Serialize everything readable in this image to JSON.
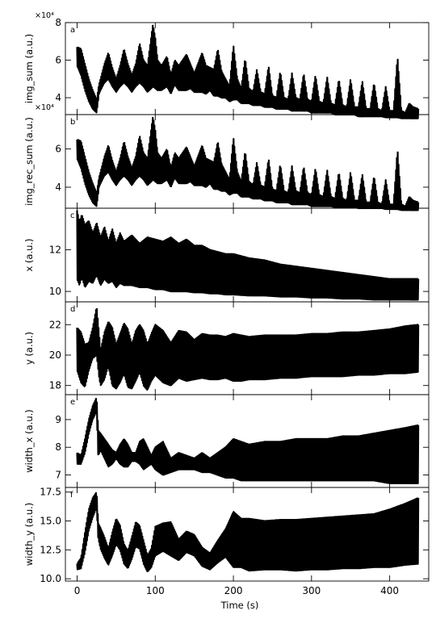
{
  "figure": {
    "xlabel": "Time (s)",
    "x_ticks": [
      "0",
      "100",
      "200",
      "300",
      "400"
    ]
  },
  "chart_data": [
    {
      "type": "line",
      "panel": "a",
      "ylabel": "img_sum (a.u.)",
      "y_offset_text": "×10⁴",
      "xlim": [
        -15,
        450
      ],
      "ylim": [
        31000,
        80000
      ],
      "y_ticks": [
        40000,
        60000,
        80000
      ],
      "y_tick_labels": [
        "4",
        "6",
        "8"
      ],
      "env": {
        "t": [
          0,
          5,
          10,
          15,
          20,
          25,
          28,
          30,
          35,
          40,
          45,
          50,
          55,
          60,
          65,
          70,
          75,
          80,
          85,
          90,
          95,
          97,
          100,
          103,
          108,
          115,
          120,
          125,
          130,
          140,
          145,
          150,
          160,
          165,
          170,
          175,
          180,
          185,
          190,
          195,
          200,
          205,
          210,
          215,
          220,
          225,
          230,
          235,
          240,
          245,
          250,
          255,
          260,
          265,
          270,
          275,
          280,
          285,
          290,
          295,
          300,
          305,
          310,
          315,
          320,
          325,
          330,
          335,
          340,
          345,
          350,
          355,
          360,
          365,
          370,
          375,
          380,
          385,
          390,
          395,
          400,
          405,
          410,
          415,
          420,
          425,
          430,
          437
        ],
        "upper": [
          67000,
          66000,
          58000,
          50000,
          44000,
          39000,
          47000,
          50000,
          58000,
          64000,
          56000,
          50000,
          57000,
          66000,
          58000,
          52000,
          58000,
          69000,
          60000,
          57000,
          73000,
          79000,
          72000,
          60000,
          57000,
          62000,
          52000,
          60000,
          57000,
          63000,
          58000,
          53000,
          64000,
          57000,
          56000,
          55000,
          66000,
          54000,
          50000,
          46000,
          68000,
          50000,
          45000,
          61000,
          45000,
          43000,
          55000,
          43000,
          42000,
          57000,
          41000,
          40000,
          54000,
          40000,
          39000,
          53000,
          40000,
          39000,
          53000,
          39000,
          38000,
          52000,
          38000,
          37000,
          51000,
          37000,
          36000,
          50000,
          36000,
          35000,
          50000,
          35000,
          35000,
          49000,
          34000,
          34000,
          48000,
          34000,
          33000,
          46000,
          33000,
          33000,
          62000,
          33000,
          32000,
          37000,
          35000,
          34000
        ],
        "lower": [
          57000,
          52000,
          44000,
          38000,
          34000,
          32000,
          42000,
          44000,
          48000,
          50000,
          46000,
          43000,
          46000,
          48000,
          46000,
          43000,
          46000,
          48000,
          46000,
          43000,
          45000,
          46000,
          45000,
          44000,
          44000,
          46000,
          42000,
          47000,
          44000,
          44000,
          45000,
          43000,
          43000,
          42000,
          44000,
          41000,
          41000,
          40000,
          40000,
          38000,
          39000,
          39000,
          37000,
          37000,
          37000,
          36000,
          36000,
          36000,
          35000,
          35000,
          35000,
          34000,
          34000,
          34000,
          34000,
          33000,
          33000,
          33000,
          33000,
          33000,
          32000,
          32000,
          32000,
          32000,
          32000,
          32000,
          31000,
          31000,
          31000,
          31000,
          31000,
          31000,
          30000,
          30000,
          30000,
          30000,
          30000,
          30000,
          30000,
          29500,
          29500,
          29500,
          29500,
          29000,
          29000,
          29000,
          29000,
          29000
        ]
      }
    },
    {
      "type": "line",
      "panel": "b",
      "ylabel": "img_rec_sum (a.u.)",
      "y_offset_text": "×10⁴",
      "xlim": [
        -15,
        450
      ],
      "ylim": [
        29000,
        78000
      ],
      "y_ticks": [
        40000,
        60000
      ],
      "y_tick_labels": [
        "4",
        "6"
      ],
      "env": {
        "t": [
          0,
          5,
          10,
          15,
          20,
          25,
          28,
          30,
          35,
          40,
          45,
          50,
          55,
          60,
          65,
          70,
          75,
          80,
          85,
          90,
          95,
          97,
          100,
          103,
          108,
          115,
          120,
          125,
          130,
          140,
          145,
          150,
          160,
          165,
          170,
          175,
          180,
          185,
          190,
          195,
          200,
          205,
          210,
          215,
          220,
          225,
          230,
          235,
          240,
          245,
          250,
          255,
          260,
          265,
          270,
          275,
          280,
          285,
          290,
          295,
          300,
          305,
          310,
          315,
          320,
          325,
          330,
          335,
          340,
          345,
          350,
          355,
          360,
          365,
          370,
          375,
          380,
          385,
          390,
          395,
          400,
          405,
          410,
          415,
          420,
          425,
          430,
          437
        ],
        "upper": [
          65000,
          64000,
          56000,
          48000,
          42000,
          37000,
          45000,
          48000,
          56000,
          62000,
          54000,
          48000,
          55000,
          64000,
          56000,
          50000,
          56000,
          67000,
          58000,
          55000,
          71000,
          77000,
          70000,
          58000,
          55000,
          60000,
          50000,
          58000,
          55000,
          61000,
          56000,
          51000,
          62000,
          55000,
          54000,
          53000,
          64000,
          52000,
          48000,
          44000,
          66000,
          48000,
          43000,
          59000,
          43000,
          41000,
          53000,
          41000,
          40000,
          55000,
          39000,
          38000,
          52000,
          38000,
          37000,
          51000,
          38000,
          37000,
          51000,
          37000,
          36000,
          50000,
          36000,
          35000,
          49000,
          35000,
          34000,
          48000,
          34000,
          33000,
          48000,
          33000,
          33000,
          47000,
          32000,
          32000,
          46000,
          32000,
          31000,
          44000,
          31000,
          31000,
          60000,
          31000,
          30000,
          35000,
          33000,
          32000
        ],
        "lower": [
          55000,
          50000,
          42000,
          36000,
          32000,
          30000,
          40000,
          42000,
          46000,
          48000,
          44000,
          41000,
          44000,
          46000,
          44000,
          41000,
          44000,
          46000,
          44000,
          41000,
          43000,
          44000,
          43000,
          42000,
          42000,
          44000,
          40000,
          45000,
          42000,
          42000,
          43000,
          41000,
          41000,
          40000,
          42000,
          39000,
          39000,
          38000,
          38000,
          36000,
          37000,
          37000,
          35000,
          35000,
          35000,
          34000,
          34000,
          34000,
          33000,
          33000,
          33000,
          32000,
          32000,
          32000,
          32000,
          31000,
          31000,
          31000,
          31000,
          31000,
          30000,
          30000,
          30000,
          30000,
          30000,
          30000,
          29500,
          29500,
          29500,
          29500,
          29500,
          29500,
          29000,
          29000,
          29000,
          29000,
          29000,
          29000,
          29000,
          28500,
          28500,
          28500,
          28500,
          28000,
          28000,
          28000,
          28000,
          28000
        ]
      }
    },
    {
      "type": "line",
      "panel": "c",
      "ylabel": "x (a.u.)",
      "xlim": [
        -15,
        450
      ],
      "ylim": [
        9.5,
        14.0
      ],
      "y_ticks": [
        10,
        12
      ],
      "y_tick_labels": [
        "10",
        "12"
      ],
      "env": {
        "t": [
          0,
          3,
          6,
          10,
          15,
          20,
          25,
          30,
          35,
          40,
          45,
          50,
          55,
          60,
          70,
          80,
          90,
          100,
          110,
          120,
          130,
          140,
          150,
          160,
          170,
          180,
          190,
          200,
          220,
          240,
          260,
          280,
          300,
          320,
          340,
          360,
          380,
          400,
          420,
          437
        ],
        "upper": [
          13.9,
          13.3,
          13.7,
          13.2,
          13.4,
          12.8,
          13.3,
          12.6,
          13.1,
          12.4,
          13.0,
          12.3,
          12.8,
          12.4,
          12.7,
          12.3,
          12.6,
          12.5,
          12.4,
          12.6,
          12.3,
          12.5,
          12.2,
          12.2,
          12.0,
          11.9,
          11.8,
          11.8,
          11.6,
          11.5,
          11.3,
          11.2,
          11.1,
          11.0,
          10.9,
          10.8,
          10.7,
          10.6,
          10.6,
          10.6
        ],
        "lower": [
          10.6,
          10.3,
          10.7,
          10.2,
          10.5,
          10.4,
          10.8,
          10.3,
          10.6,
          10.4,
          10.5,
          10.2,
          10.4,
          10.3,
          10.3,
          10.2,
          10.2,
          10.1,
          10.1,
          10.0,
          10.0,
          10.0,
          9.95,
          9.95,
          9.9,
          9.9,
          9.85,
          9.85,
          9.8,
          9.8,
          9.75,
          9.75,
          9.7,
          9.7,
          9.65,
          9.65,
          9.6,
          9.6,
          9.6,
          9.6
        ]
      }
    },
    {
      "type": "line",
      "panel": "d",
      "ylabel": "y (a.u.)",
      "xlim": [
        -15,
        450
      ],
      "ylim": [
        17.4,
        23.5
      ],
      "y_ticks": [
        18,
        20,
        22
      ],
      "y_tick_labels": [
        "18",
        "20",
        "22"
      ],
      "env": {
        "t": [
          0,
          5,
          10,
          15,
          20,
          25,
          28,
          30,
          35,
          40,
          45,
          50,
          55,
          60,
          65,
          70,
          75,
          80,
          85,
          90,
          95,
          100,
          110,
          120,
          130,
          140,
          150,
          160,
          170,
          180,
          190,
          200,
          210,
          220,
          240,
          260,
          280,
          300,
          320,
          340,
          360,
          380,
          400,
          420,
          437
        ],
        "upper": [
          21.8,
          21.5,
          20.7,
          20.8,
          21.8,
          23.2,
          21.5,
          20.3,
          21.5,
          22.2,
          21.8,
          20.7,
          21.4,
          22.1,
          21.7,
          20.7,
          21.6,
          22.0,
          21.6,
          20.7,
          21.4,
          22.0,
          21.6,
          20.8,
          21.6,
          21.5,
          21.0,
          21.4,
          21.3,
          21.3,
          21.2,
          21.4,
          21.3,
          21.2,
          21.3,
          21.3,
          21.3,
          21.4,
          21.4,
          21.5,
          21.5,
          21.6,
          21.7,
          21.9,
          22.0
        ],
        "lower": [
          19.0,
          18.2,
          17.9,
          19.0,
          19.8,
          20.0,
          18.6,
          18.0,
          18.4,
          19.3,
          18.0,
          17.8,
          18.2,
          18.8,
          17.9,
          17.8,
          18.3,
          18.9,
          18.0,
          17.7,
          18.3,
          18.7,
          18.2,
          18.0,
          18.5,
          18.3,
          18.4,
          18.5,
          18.4,
          18.4,
          18.5,
          18.3,
          18.3,
          18.4,
          18.4,
          18.5,
          18.5,
          18.6,
          18.6,
          18.6,
          18.7,
          18.7,
          18.8,
          18.8,
          18.9
        ]
      }
    },
    {
      "type": "line",
      "panel": "e",
      "ylabel": "width_x (a.u.)",
      "xlim": [
        -15,
        450
      ],
      "ylim": [
        6.55,
        9.9
      ],
      "y_ticks": [
        7,
        8,
        9
      ],
      "y_tick_labels": [
        "7",
        "8",
        "9"
      ],
      "env": {
        "t": [
          0,
          5,
          10,
          15,
          20,
          25,
          27,
          30,
          35,
          40,
          45,
          50,
          55,
          60,
          65,
          70,
          75,
          80,
          85,
          90,
          95,
          100,
          110,
          120,
          130,
          140,
          150,
          160,
          170,
          180,
          190,
          200,
          210,
          220,
          240,
          260,
          280,
          300,
          320,
          340,
          360,
          380,
          400,
          420,
          437
        ],
        "upper": [
          7.8,
          7.7,
          8.3,
          9.0,
          9.5,
          9.8,
          8.6,
          8.5,
          8.3,
          8.1,
          7.9,
          7.8,
          8.1,
          8.3,
          8.1,
          7.8,
          7.8,
          8.2,
          8.3,
          8.0,
          7.7,
          8.0,
          8.2,
          7.6,
          7.8,
          7.7,
          7.6,
          7.8,
          7.6,
          7.8,
          8.0,
          8.3,
          8.2,
          8.1,
          8.2,
          8.2,
          8.3,
          8.3,
          8.3,
          8.4,
          8.4,
          8.5,
          8.6,
          8.7,
          8.8
        ],
        "lower": [
          7.4,
          7.4,
          7.8,
          8.5,
          9.0,
          9.3,
          7.7,
          7.9,
          7.6,
          7.3,
          7.4,
          7.6,
          7.4,
          7.3,
          7.3,
          7.5,
          7.5,
          7.4,
          7.2,
          7.3,
          7.4,
          7.2,
          7.0,
          7.1,
          7.2,
          7.2,
          7.2,
          7.1,
          7.1,
          7.0,
          6.9,
          6.9,
          6.8,
          6.8,
          6.8,
          6.8,
          6.8,
          6.8,
          6.8,
          6.8,
          6.8,
          6.8,
          6.7,
          6.7,
          6.7
        ]
      }
    },
    {
      "type": "line",
      "panel": "f",
      "ylabel": "width_y (a.u.)",
      "xlim": [
        -15,
        450
      ],
      "ylim": [
        9.8,
        17.9
      ],
      "y_ticks": [
        10.0,
        12.5,
        15.0,
        17.5
      ],
      "y_tick_labels": [
        "10.0",
        "12.5",
        "15.0",
        "17.5"
      ],
      "env": {
        "t": [
          0,
          5,
          10,
          15,
          20,
          25,
          27,
          30,
          35,
          40,
          45,
          50,
          55,
          60,
          65,
          70,
          75,
          80,
          85,
          90,
          95,
          100,
          110,
          120,
          130,
          140,
          150,
          160,
          170,
          180,
          190,
          200,
          210,
          220,
          240,
          260,
          280,
          300,
          320,
          340,
          360,
          380,
          400,
          420,
          437
        ],
        "upper": [
          11.3,
          11.8,
          14.0,
          16.0,
          17.0,
          17.5,
          14.8,
          14.4,
          13.6,
          12.6,
          14.0,
          15.2,
          14.6,
          13.0,
          12.4,
          13.6,
          14.9,
          14.6,
          13.3,
          12.0,
          12.6,
          14.5,
          14.8,
          14.9,
          13.4,
          14.1,
          13.8,
          12.7,
          12.2,
          13.3,
          14.3,
          15.8,
          15.2,
          15.2,
          15.0,
          15.1,
          15.1,
          15.2,
          15.3,
          15.4,
          15.5,
          15.6,
          16.0,
          16.5,
          17.0
        ],
        "lower": [
          10.8,
          10.9,
          12.3,
          14.2,
          15.3,
          16.2,
          13.5,
          12.6,
          11.8,
          11.2,
          12.0,
          13.0,
          12.5,
          11.3,
          10.9,
          11.7,
          12.8,
          12.6,
          11.3,
          10.6,
          11.0,
          12.0,
          12.4,
          12.0,
          11.6,
          12.3,
          12.0,
          11.1,
          10.8,
          11.4,
          11.9,
          11.0,
          11.0,
          10.7,
          10.8,
          10.8,
          10.7,
          10.8,
          10.8,
          10.9,
          10.9,
          11.0,
          11.0,
          11.2,
          11.3
        ]
      }
    }
  ]
}
